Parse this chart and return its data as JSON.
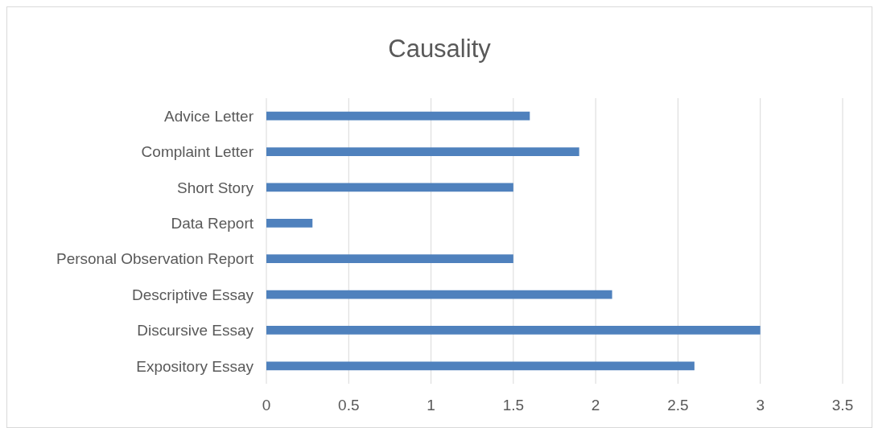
{
  "chart_data": {
    "type": "bar",
    "orientation": "horizontal",
    "title": "Causality",
    "categories": [
      "Advice Letter",
      "Complaint Letter",
      "Short Story",
      "Data Report",
      "Personal Observation Report",
      "Descriptive Essay",
      "Discursive Essay",
      "Expository Essay"
    ],
    "values": [
      1.6,
      1.9,
      1.5,
      0.28,
      1.5,
      2.1,
      3,
      2.6
    ],
    "color": "#4f81bd",
    "xlim": [
      0,
      3.5
    ],
    "xticks": [
      0,
      0.5,
      1,
      1.5,
      2,
      2.5,
      3,
      3.5
    ],
    "grid": "x"
  }
}
